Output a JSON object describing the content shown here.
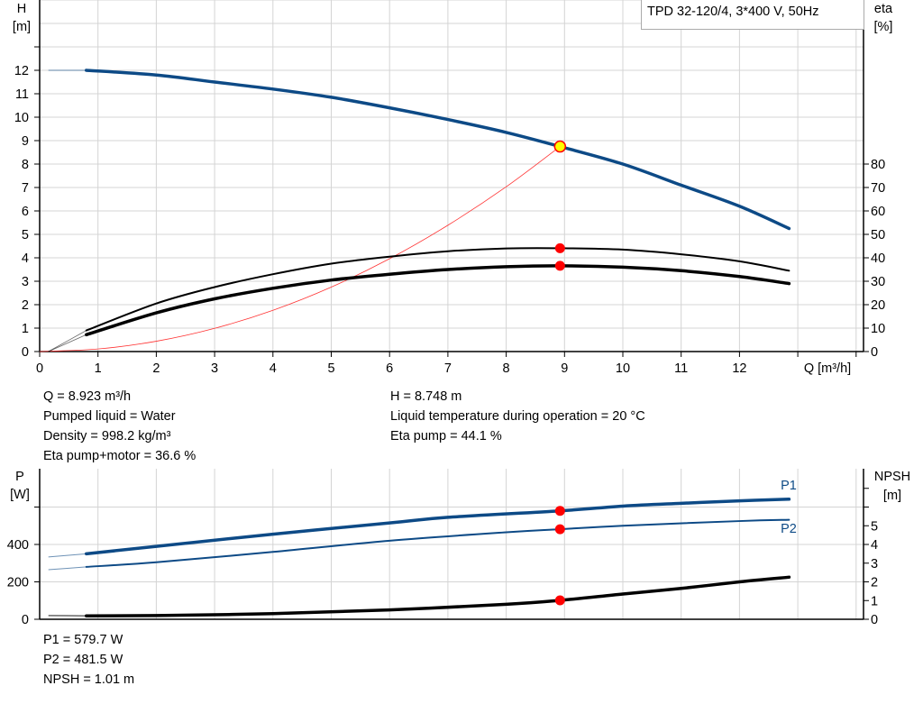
{
  "title_box": "TPD 32-120/4, 3*400 V, 50Hz",
  "colors": {
    "pump_curve": "#0d4a86",
    "efficiency": "#000000",
    "system_curve": "#ff3333",
    "operating_point": "#ff0000",
    "duty_marker": "#ffff00",
    "grid": "#d4d4d4"
  },
  "chart_data": [
    {
      "type": "line",
      "xlabel": "Q [m³/h]",
      "ylabel": "H",
      "ylabel_unit": "[m]",
      "y2label": "eta",
      "y2label_unit": "[%]",
      "xlim": [
        0,
        14
      ],
      "ylim": [
        0,
        15
      ],
      "y2lim": [
        0,
        150
      ],
      "xticks": [
        "0",
        "1",
        "2",
        "3",
        "4",
        "5",
        "6",
        "7",
        "8",
        "9",
        "10",
        "11",
        "12"
      ],
      "yticks": [
        "0",
        "1",
        "2",
        "3",
        "4",
        "5",
        "6",
        "7",
        "8",
        "9",
        "10",
        "11",
        "12"
      ],
      "y2ticks": [
        "0",
        "10",
        "20",
        "30",
        "40",
        "50",
        "60",
        "70",
        "80"
      ],
      "grid": true,
      "series": [
        {
          "id": "H",
          "axis": "left",
          "x": [
            0.15,
            0.8,
            2,
            3,
            4,
            5,
            6,
            7,
            8,
            8.923,
            10,
            11,
            12,
            12.85
          ],
          "y": [
            12.0,
            12.0,
            11.8,
            11.5,
            11.2,
            10.85,
            10.4,
            9.9,
            9.35,
            8.748,
            8.0,
            7.1,
            6.2,
            5.25
          ]
        },
        {
          "id": "eta-pump",
          "axis": "right",
          "x": [
            0.15,
            0.8,
            2,
            3,
            4,
            5,
            6,
            7,
            8,
            8.923,
            10,
            11,
            12,
            12.85
          ],
          "y": [
            0,
            9,
            20.5,
            27.5,
            33,
            37.5,
            40.5,
            42.8,
            44,
            44.1,
            43.5,
            41.5,
            38.5,
            34.5
          ]
        },
        {
          "id": "eta-pump-motor",
          "axis": "right",
          "x": [
            0.15,
            0.8,
            2,
            3,
            4,
            5,
            6,
            7,
            8,
            8.923,
            10,
            11,
            12,
            12.85
          ],
          "y": [
            0,
            7.2,
            16.5,
            22.5,
            27,
            30.5,
            33,
            35,
            36.2,
            36.6,
            36,
            34.5,
            32,
            29
          ]
        },
        {
          "id": "system-curve",
          "axis": "left",
          "x": [
            0,
            1,
            2,
            3,
            4,
            5,
            6,
            7,
            8,
            8.923
          ],
          "y": [
            0,
            0.11,
            0.44,
            0.99,
            1.76,
            2.75,
            3.96,
            5.39,
            7.03,
            8.748
          ]
        }
      ],
      "operating_point": {
        "Q": 8.923,
        "H": 8.748,
        "eta_pump": 44.1,
        "eta_pump_motor": 36.6
      }
    },
    {
      "type": "line",
      "ylabel": "P",
      "ylabel_unit": "[W]",
      "y2label": "NPSH",
      "y2label_unit": "[m]",
      "xlim": [
        0,
        14
      ],
      "ylim": [
        0,
        800
      ],
      "y2lim": [
        0,
        8
      ],
      "yticks": [
        "0",
        "200",
        "400"
      ],
      "y2ticks": [
        "0",
        "1",
        "2",
        "3",
        "4",
        "5"
      ],
      "grid": true,
      "series": [
        {
          "id": "P1",
          "name": "P1",
          "axis": "left",
          "x": [
            0.15,
            0.8,
            2,
            4,
            6,
            7,
            8.923,
            10,
            11,
            12,
            12.85
          ],
          "y": [
            333,
            350,
            390,
            455,
            515,
            545,
            579.7,
            605,
            620,
            633,
            642
          ]
        },
        {
          "id": "P2",
          "name": "P2",
          "axis": "left",
          "x": [
            0.15,
            0.8,
            2,
            4,
            6,
            8,
            8.923,
            10,
            12,
            12.85
          ],
          "y": [
            265,
            280,
            305,
            360,
            420,
            465,
            481.5,
            500,
            525,
            532
          ]
        },
        {
          "id": "NPSH",
          "axis": "right",
          "x": [
            0.15,
            0.8,
            2,
            4,
            6,
            8,
            8.923,
            10,
            11,
            12,
            12.85
          ],
          "y": [
            0.2,
            0.18,
            0.2,
            0.3,
            0.5,
            0.8,
            1.01,
            1.35,
            1.65,
            2.0,
            2.25
          ]
        }
      ]
    }
  ],
  "info_top": {
    "q": "Q = 8.923 m³/h",
    "liquid": "Pumped liquid = Water",
    "density": "Density = 998.2 kg/m³",
    "eta_pm": "Eta pump+motor = 36.6 %",
    "h": "H = 8.748 m",
    "temp": "Liquid temperature during operation = 20 °C",
    "eta_p": "Eta pump = 44.1 %"
  },
  "info_bottom": {
    "p1": "P1 = 579.7 W",
    "p2": "P2 = 481.5 W",
    "npsh": "NPSH = 1.01 m"
  }
}
